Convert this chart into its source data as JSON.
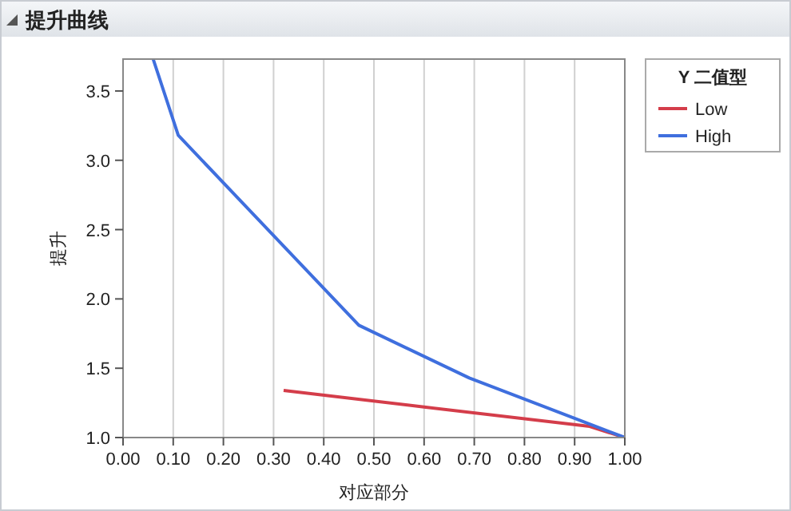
{
  "chart_data": {
    "type": "line",
    "title": "提升曲线",
    "xlabel": "对应部分",
    "ylabel": "提升",
    "legend_title": "Y 二值型",
    "xlim": [
      0,
      1
    ],
    "xticks": [
      {
        "value": 0,
        "label": "0.00"
      },
      {
        "value": 0.1,
        "label": "0.10"
      },
      {
        "value": 0.2,
        "label": "0.20"
      },
      {
        "value": 0.3,
        "label": "0.30"
      },
      {
        "value": 0.4,
        "label": "0.40"
      },
      {
        "value": 0.5,
        "label": "0.50"
      },
      {
        "value": 0.6,
        "label": "0.60"
      },
      {
        "value": 0.7,
        "label": "0.70"
      },
      {
        "value": 0.8,
        "label": "0.80"
      },
      {
        "value": 0.9,
        "label": "0.90"
      },
      {
        "value": 1,
        "label": "1.00"
      }
    ],
    "ylim": [
      1,
      3.73
    ],
    "yticks": [
      {
        "value": 1,
        "label": "1.0"
      },
      {
        "value": 1.5,
        "label": "1.5"
      },
      {
        "value": 2,
        "label": "2.0"
      },
      {
        "value": 2.5,
        "label": "2.5"
      },
      {
        "value": 3,
        "label": "3.0"
      },
      {
        "value": 3.5,
        "label": "3.5"
      }
    ],
    "grid": "x",
    "legend": "right",
    "line_style": "solid",
    "marker": "none",
    "series": [
      {
        "name": "Low",
        "color": "#d43d4a",
        "x": [
          0.32,
          0.6,
          0.93,
          1.0
        ],
        "values": [
          1.34,
          1.22,
          1.08,
          1.0
        ]
      },
      {
        "name": "High",
        "color": "#3f6fde",
        "x": [
          0.06,
          0.11,
          0.47,
          0.69,
          1.0
        ],
        "values": [
          3.73,
          3.18,
          1.81,
          1.43,
          1.0
        ]
      }
    ]
  }
}
